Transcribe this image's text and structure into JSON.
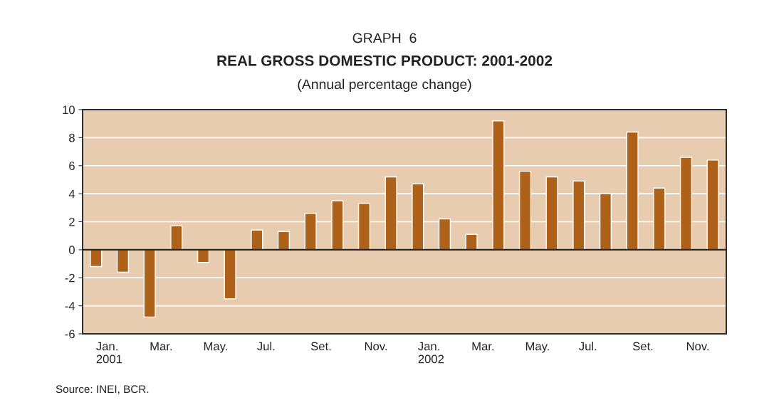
{
  "chart_data": {
    "type": "bar",
    "title": "GRAPH  6",
    "subtitle": "REAL GROSS DOMESTIC PRODUCT: 2001-2002",
    "annotations": [
      "(Annual percentage change)",
      "Source: INEI, BCR."
    ],
    "categories": [
      "Jan.\n2001",
      null,
      "Mar.",
      null,
      "May.",
      null,
      "Jul.",
      null,
      "Set.",
      null,
      "Nov.",
      null,
      "Jan.\n2002",
      null,
      "Mar.",
      null,
      "May.",
      null,
      "Jul.",
      null,
      "Set.",
      null,
      "Nov.",
      null
    ],
    "values": [
      -1.2,
      -1.6,
      -4.8,
      1.7,
      -0.9,
      -3.5,
      1.4,
      1.3,
      2.6,
      3.5,
      3.3,
      5.2,
      4.7,
      2.2,
      1.1,
      9.2,
      5.6,
      5.2,
      4.9,
      4.0,
      8.4,
      4.4,
      6.6,
      6.4
    ],
    "color": "#ae6219",
    "ylim": [
      -6,
      10
    ],
    "yticks": [
      -6,
      -4,
      -2,
      0,
      2,
      4,
      6,
      8,
      10
    ],
    "grid": "y"
  }
}
